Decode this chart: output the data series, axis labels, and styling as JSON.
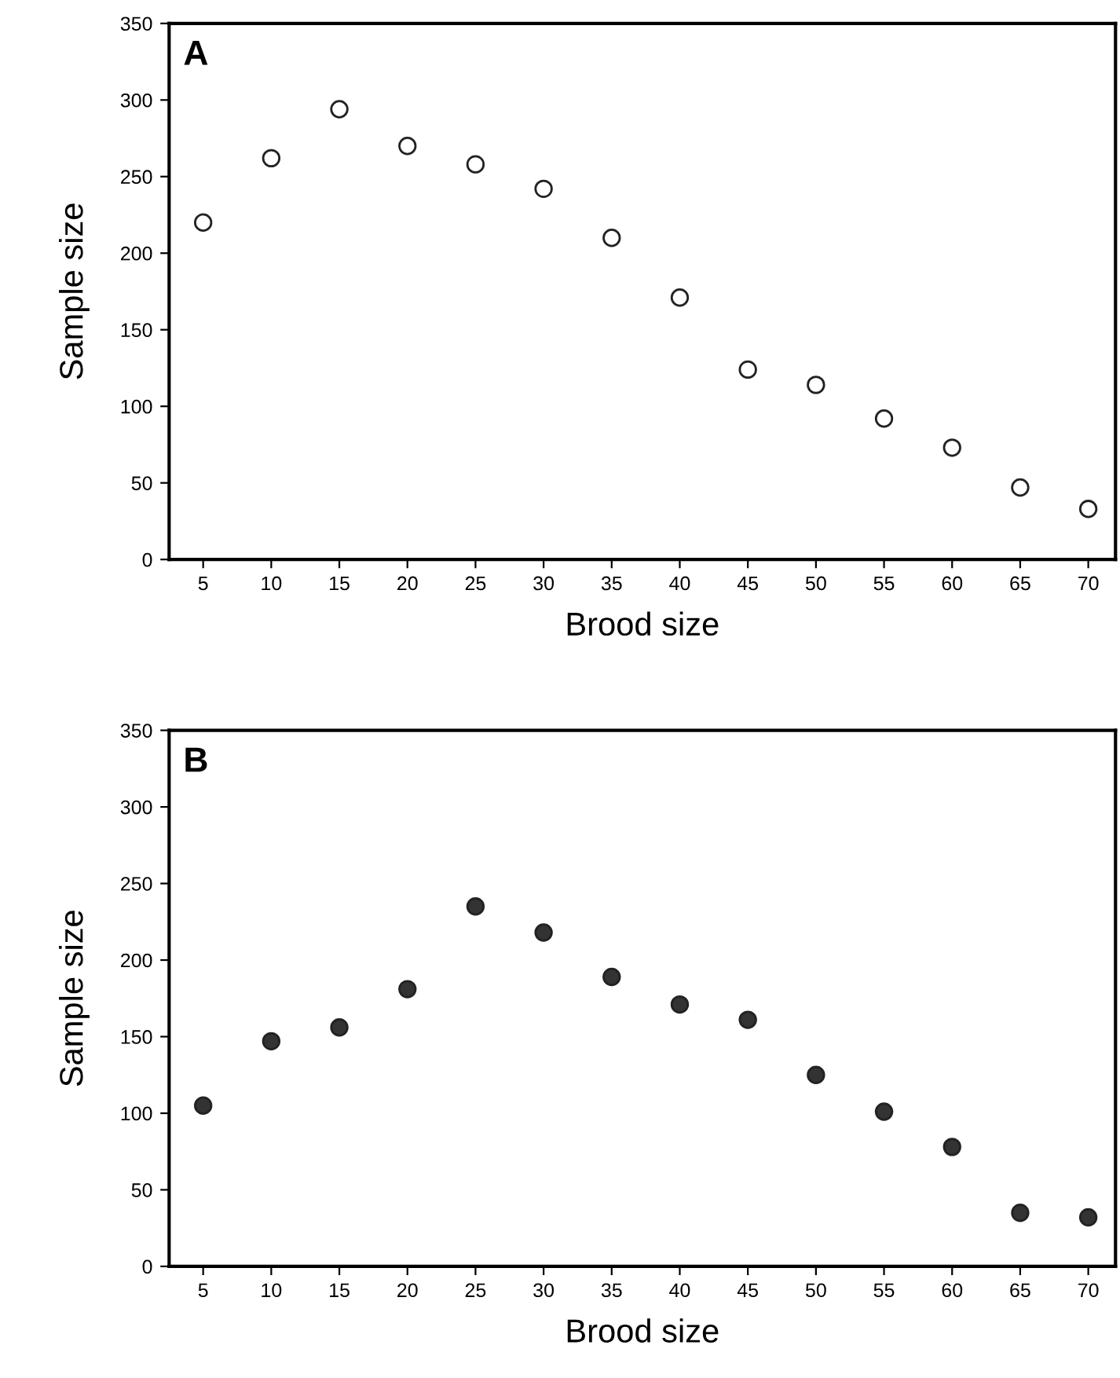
{
  "chart_data": [
    {
      "type": "scatter",
      "annotations": [
        "A"
      ],
      "xlabel": "Brood size",
      "ylabel": "Sample size",
      "x": [
        5,
        10,
        15,
        20,
        25,
        30,
        35,
        40,
        45,
        50,
        55,
        60,
        65,
        70
      ],
      "series": [
        {
          "color": "#ffffff",
          "values": [
            220,
            262,
            294,
            270,
            258,
            242,
            210,
            171,
            124,
            114,
            92,
            73,
            47,
            33
          ]
        }
      ],
      "xlim": [
        2.5,
        72
      ],
      "xticks": [
        5,
        10,
        15,
        20,
        25,
        30,
        35,
        40,
        45,
        50,
        55,
        60,
        65,
        70
      ],
      "ylim": [
        0,
        350
      ],
      "yticks": [
        0,
        50,
        100,
        150,
        200,
        250,
        300,
        350
      ],
      "marker": "circle",
      "grid": false,
      "legend": false
    },
    {
      "type": "scatter",
      "annotations": [
        "B"
      ],
      "xlabel": "Brood size",
      "ylabel": "Sample size",
      "x": [
        5,
        10,
        15,
        20,
        25,
        30,
        35,
        40,
        45,
        50,
        55,
        60,
        65,
        70
      ],
      "series": [
        {
          "color": "#333333",
          "values": [
            105,
            147,
            156,
            181,
            235,
            218,
            189,
            171,
            161,
            125,
            101,
            78,
            35,
            32
          ]
        }
      ],
      "xlim": [
        2.5,
        72
      ],
      "xticks": [
        5,
        10,
        15,
        20,
        25,
        30,
        35,
        40,
        45,
        50,
        55,
        60,
        65,
        70
      ],
      "ylim": [
        0,
        350
      ],
      "yticks": [
        0,
        50,
        100,
        150,
        200,
        250,
        300,
        350
      ],
      "marker": "circle",
      "grid": false,
      "legend": false
    }
  ]
}
